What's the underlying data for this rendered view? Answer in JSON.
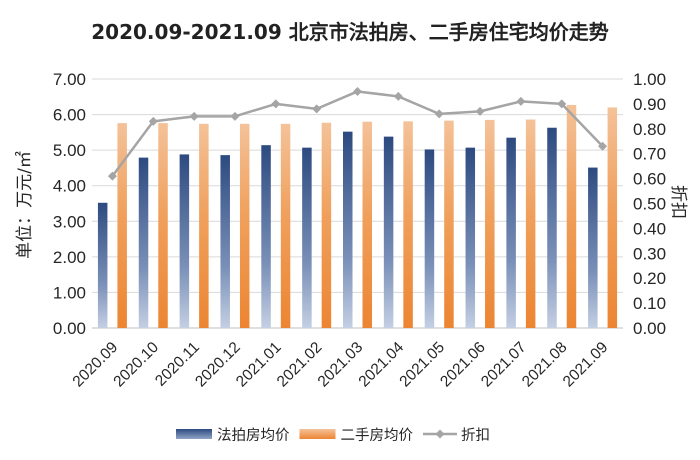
{
  "chart_data": {
    "type": "bar",
    "title": "2020.09-2021.09 北京市法拍房、二手房住宅均价走势",
    "categories": [
      "2020.09",
      "2020.10",
      "2020.11",
      "2020.12",
      "2021.01",
      "2021.02",
      "2021.03",
      "2021.04",
      "2021.05",
      "2021.06",
      "2021.07",
      "2021.08",
      "2021.09"
    ],
    "series": [
      {
        "name": "法拍房均价",
        "kind": "bar",
        "axis": "left",
        "color": "#3d5a8c",
        "values": [
          3.52,
          4.79,
          4.88,
          4.86,
          5.14,
          5.07,
          5.52,
          5.38,
          5.02,
          5.07,
          5.35,
          5.63,
          4.51
        ]
      },
      {
        "name": "二手房均价",
        "kind": "bar",
        "axis": "left",
        "color": "#ed8a35",
        "values": [
          5.76,
          5.76,
          5.74,
          5.74,
          5.74,
          5.77,
          5.8,
          5.81,
          5.83,
          5.85,
          5.86,
          6.27,
          6.2
        ]
      },
      {
        "name": "折扣",
        "kind": "line",
        "axis": "right",
        "color": "#a5a5a5",
        "values": [
          0.61,
          0.83,
          0.85,
          0.85,
          0.9,
          0.88,
          0.95,
          0.93,
          0.86,
          0.87,
          0.91,
          0.9,
          0.73
        ]
      }
    ],
    "ylabel": "单位：万元/㎡",
    "y2label": "折扣",
    "ylim": [
      0,
      7
    ],
    "y2lim": [
      0,
      1
    ],
    "yticks": [
      "0.00",
      "1.00",
      "2.00",
      "3.00",
      "4.00",
      "5.00",
      "6.00",
      "7.00"
    ],
    "y2ticks": [
      "0.00",
      "0.10",
      "0.20",
      "0.30",
      "0.40",
      "0.50",
      "0.60",
      "0.70",
      "0.80",
      "0.90",
      "1.00"
    ],
    "grid": true,
    "legend_position": "bottom"
  }
}
